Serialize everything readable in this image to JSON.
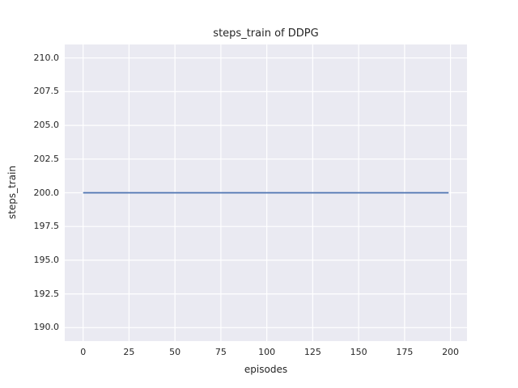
{
  "figure": {
    "background": "#ffffff",
    "axes_background": "#eaeaf2",
    "grid_color": "#ffffff",
    "text_color": "#262626"
  },
  "chart_data": {
    "type": "line",
    "title": "steps_train of DDPG",
    "xlabel": "episodes",
    "ylabel": "steps_train",
    "xlim": [
      -10,
      209
    ],
    "ylim": [
      189,
      211
    ],
    "x_ticks": [
      0,
      25,
      50,
      75,
      100,
      125,
      150,
      175,
      200
    ],
    "y_ticks": [
      190.0,
      192.5,
      195.0,
      197.5,
      200.0,
      202.5,
      205.0,
      207.5,
      210.0
    ],
    "y_tick_labels": [
      "190.0",
      "192.5",
      "195.0",
      "197.5",
      "200.0",
      "202.5",
      "205.0",
      "207.5",
      "210.0"
    ],
    "grid": true,
    "legend": "none",
    "series": [
      {
        "name": "steps_train",
        "color": "#4c72b0",
        "note": "constant value 200 for every episode from 0 to 199",
        "x": [
          0,
          199
        ],
        "y": [
          200,
          200
        ]
      }
    ]
  }
}
